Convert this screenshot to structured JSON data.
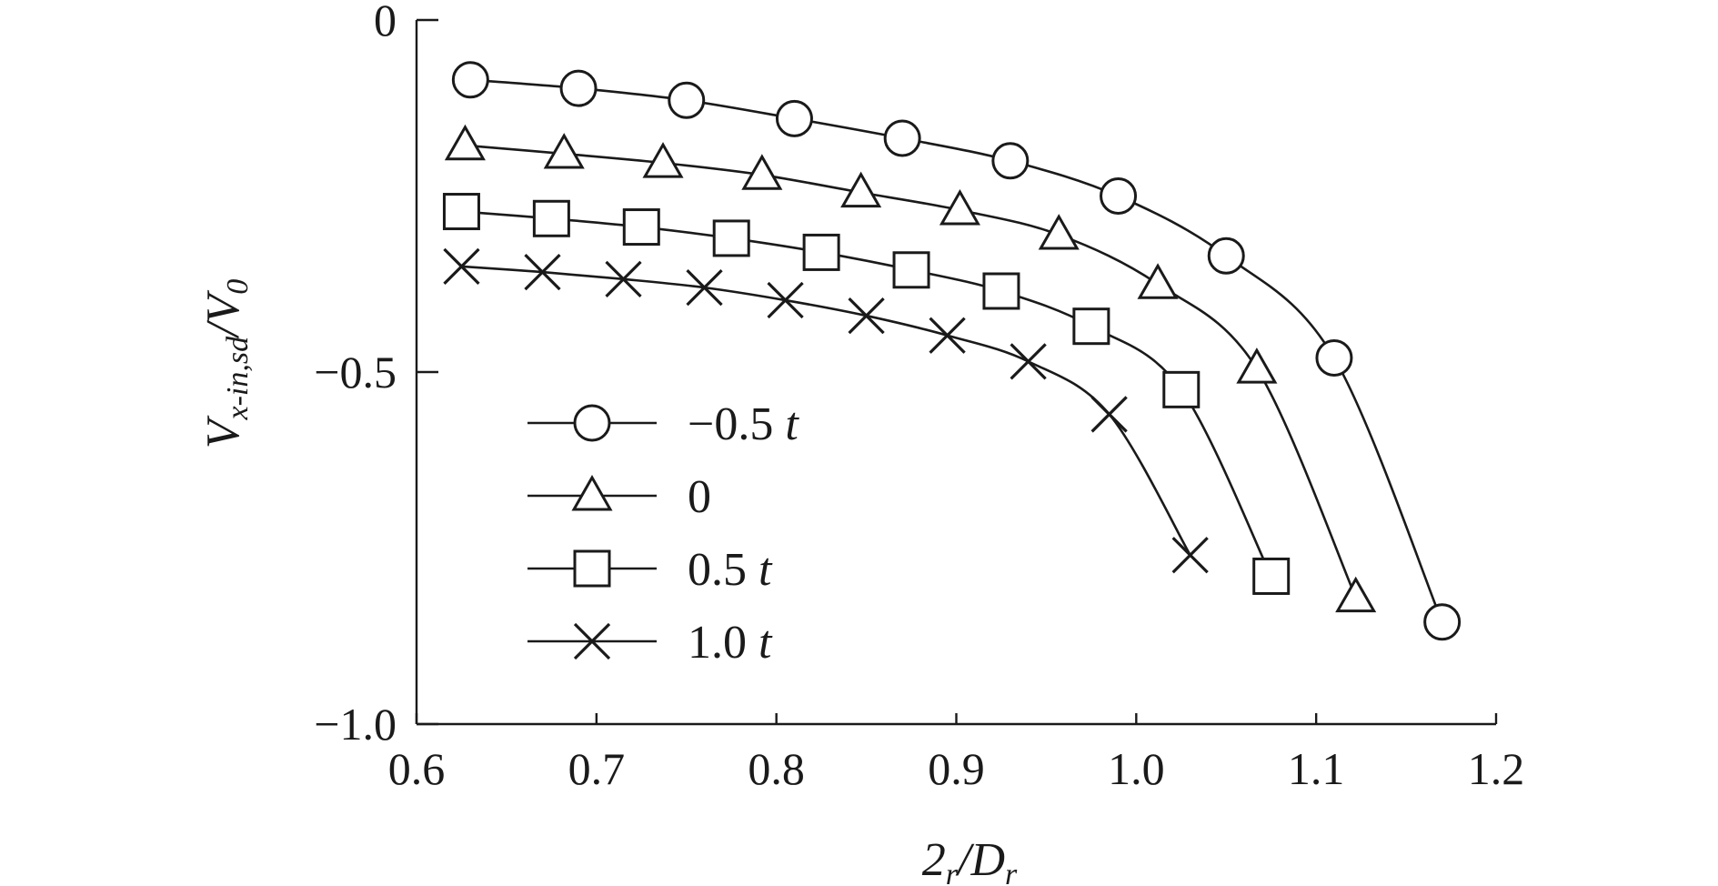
{
  "chart_data": {
    "type": "line",
    "xlabel": {
      "main": "2",
      "sub1": "r",
      "mid": "/D",
      "sub2": "r"
    },
    "ylabel": {
      "main": "V",
      "sub1": "x-in,sd",
      "mid": "/V",
      "sub2": "0"
    },
    "xlim": [
      0.6,
      1.2
    ],
    "ylim": [
      -1.0,
      0
    ],
    "xticks": [
      0.6,
      0.7,
      0.8,
      0.9,
      1.0,
      1.1,
      1.2
    ],
    "xtick_labels": [
      "0.6",
      "0.7",
      "0.8",
      "0.9",
      "1.0",
      "1.1",
      "1.2"
    ],
    "yticks": [
      0,
      -0.5,
      -1.0
    ],
    "ytick_labels": [
      "0",
      "−0.5",
      "−1.0"
    ],
    "grid": false,
    "legend_position": "lower-left",
    "series": [
      {
        "name": "−0.5",
        "name_suffix": "t",
        "marker": "circle",
        "x": [
          0.63,
          0.69,
          0.75,
          0.81,
          0.87,
          0.93,
          0.99,
          1.05,
          1.11,
          1.17
        ],
        "y": [
          -0.085,
          -0.097,
          -0.114,
          -0.14,
          -0.168,
          -0.2,
          -0.25,
          -0.335,
          -0.48,
          -0.855
        ]
      },
      {
        "name": "0",
        "name_suffix": "",
        "marker": "triangle",
        "x": [
          0.627,
          0.682,
          0.737,
          0.792,
          0.847,
          0.902,
          0.957,
          1.012,
          1.067,
          1.122
        ],
        "y": [
          -0.178,
          -0.19,
          -0.203,
          -0.22,
          -0.245,
          -0.27,
          -0.305,
          -0.375,
          -0.495,
          -0.82
        ]
      },
      {
        "name": "0.5",
        "name_suffix": "t",
        "marker": "square",
        "x": [
          0.625,
          0.675,
          0.725,
          0.775,
          0.825,
          0.875,
          0.925,
          0.975,
          1.025,
          1.075
        ],
        "y": [
          -0.272,
          -0.282,
          -0.294,
          -0.31,
          -0.33,
          -0.355,
          -0.385,
          -0.435,
          -0.525,
          -0.79
        ]
      },
      {
        "name": "1.0",
        "name_suffix": "t",
        "marker": "x",
        "x": [
          0.625,
          0.67,
          0.715,
          0.76,
          0.805,
          0.85,
          0.895,
          0.94,
          0.985,
          1.03
        ],
        "y": [
          -0.35,
          -0.358,
          -0.368,
          -0.38,
          -0.398,
          -0.42,
          -0.448,
          -0.485,
          -0.56,
          -0.76
        ]
      }
    ]
  }
}
